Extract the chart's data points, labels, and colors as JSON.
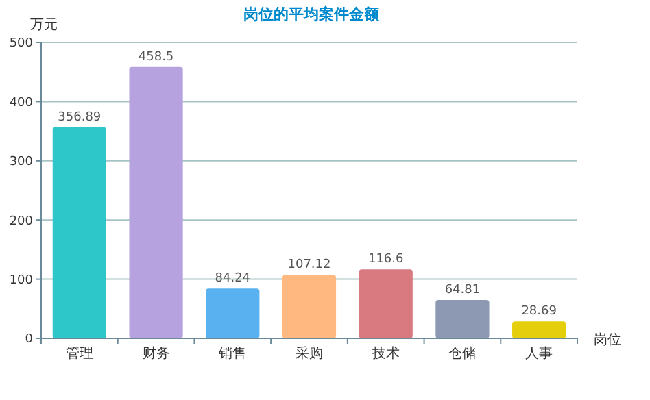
{
  "chart_data": {
    "type": "bar",
    "title": "岗位的平均案件金额",
    "xlabel": "岗位",
    "ylabel": "万元",
    "categories": [
      "管理",
      "财务",
      "销售",
      "采购",
      "技术",
      "仓储",
      "人事"
    ],
    "values": [
      356.89,
      458.5,
      84.24,
      107.12,
      116.6,
      64.81,
      28.69
    ],
    "colors": [
      "#2ec7c9",
      "#b6a2de",
      "#5ab1ef",
      "#ffb980",
      "#d87a80",
      "#8d98b3",
      "#e5cf0d"
    ],
    "ylim": [
      0,
      500
    ],
    "yticks": [
      0,
      100,
      200,
      300,
      400,
      500
    ],
    "grid": "y",
    "data_labels": true
  }
}
